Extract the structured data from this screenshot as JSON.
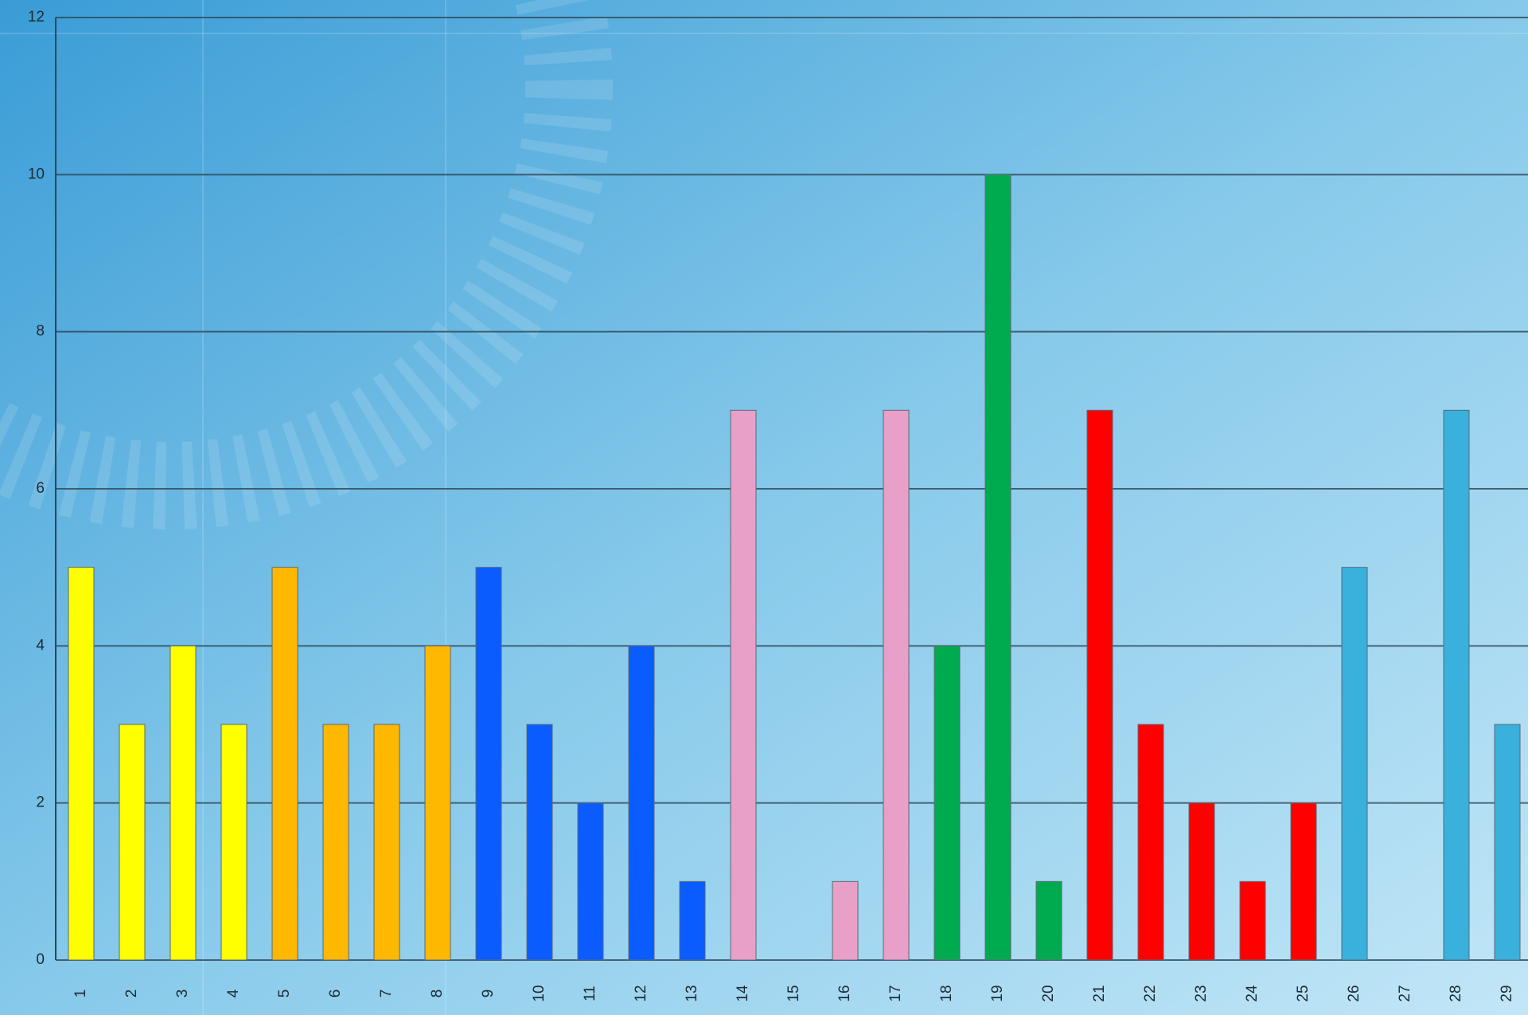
{
  "chart_data": {
    "type": "bar",
    "categories": [
      "1",
      "2",
      "3",
      "4",
      "5",
      "6",
      "7",
      "8",
      "9",
      "10",
      "11",
      "12",
      "13",
      "14",
      "15",
      "16",
      "17",
      "18",
      "19",
      "20",
      "21",
      "22",
      "23",
      "24",
      "25",
      "26",
      "27",
      "28",
      "29"
    ],
    "values": [
      5,
      3,
      4,
      3,
      5,
      3,
      3,
      4,
      5,
      3,
      2,
      4,
      1,
      7,
      0,
      1,
      7,
      4,
      10,
      1,
      7,
      3,
      2,
      1,
      2,
      5,
      0,
      7,
      3
    ],
    "colors": [
      "#ffff00",
      "#ffff00",
      "#ffff00",
      "#ffff00",
      "#ffb800",
      "#ffb800",
      "#ffb800",
      "#ffb800",
      "#0a5cff",
      "#0a5cff",
      "#0a5cff",
      "#0a5cff",
      "#0a5cff",
      "#e8a0c8",
      "#e8a0c8",
      "#e8a0c8",
      "#e8a0c8",
      "#00aa4f",
      "#00aa4f",
      "#00aa4f",
      "#ff0000",
      "#ff0000",
      "#ff0000",
      "#ff0000",
      "#ff0000",
      "#3ab0dc",
      "#3ab0dc",
      "#3ab0dc",
      "#3ab0dc"
    ],
    "ylim": [
      0,
      12
    ],
    "yticks": [
      0,
      2,
      4,
      6,
      8,
      10,
      12
    ],
    "grid": true
  }
}
